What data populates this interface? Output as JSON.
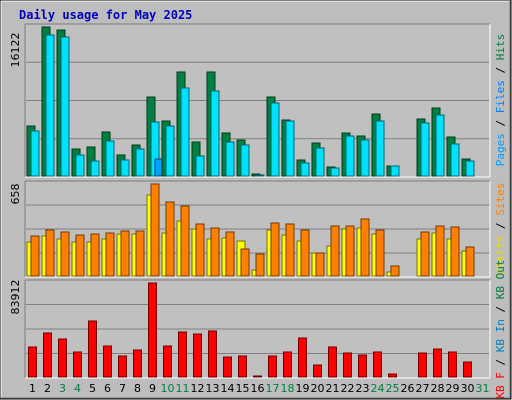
{
  "chart_data": [
    {
      "type": "bar",
      "title": "Daily usage for May 2025",
      "categories": [
        "1",
        "2",
        "3",
        "4",
        "5",
        "6",
        "7",
        "8",
        "9",
        "10",
        "11",
        "12",
        "13",
        "14",
        "15",
        "16",
        "17",
        "18",
        "19",
        "20",
        "21",
        "22",
        "23",
        "24",
        "25",
        "26",
        "27",
        "28",
        "29",
        "30",
        "31"
      ],
      "ymax_label": "16122",
      "ylim": [
        0,
        16122
      ],
      "legend": [
        "Pages",
        "Files",
        "Hits"
      ],
      "series": [
        {
          "name": "Hits",
          "color": "#008040",
          "values": [
            5400,
            16122,
            15800,
            2900,
            3100,
            4800,
            2300,
            3400,
            8600,
            5900,
            11200,
            3700,
            11200,
            4600,
            3900,
            200,
            8500,
            6100,
            1700,
            3600,
            1000,
            4700,
            4300,
            6700,
            1100,
            0,
            6200,
            7400,
            4200,
            1800,
            0
          ]
        },
        {
          "name": "Files",
          "color": "#00e0ff",
          "values": [
            4900,
            15300,
            15000,
            2300,
            1600,
            3800,
            1700,
            2900,
            5800,
            5400,
            9500,
            2200,
            9200,
            3700,
            3400,
            100,
            7900,
            5900,
            1400,
            3000,
            900,
            4300,
            3900,
            6000,
            1100,
            0,
            5700,
            6600,
            3500,
            1600,
            0
          ]
        },
        {
          "name": "Pages",
          "color": "#00a0ff",
          "values": [
            0,
            0,
            0,
            0,
            0,
            0,
            0,
            0,
            1800,
            0,
            0,
            0,
            0,
            0,
            0,
            0,
            0,
            0,
            0,
            0,
            0,
            0,
            0,
            0,
            0,
            0,
            0,
            0,
            0,
            0,
            0
          ]
        }
      ]
    },
    {
      "type": "bar",
      "ymax_label": "658",
      "ylim": [
        0,
        658
      ],
      "legend": [
        "Visits",
        "Sites"
      ],
      "series": [
        {
          "name": "Visits",
          "color": "#ffff00",
          "values": [
            245,
            284,
            262,
            246,
            245,
            268,
            300,
            302,
            580,
            310,
            395,
            335,
            264,
            270,
            252,
            40,
            332,
            290,
            250,
            168,
            218,
            335,
            340,
            298,
            29,
            0,
            265,
            307,
            266,
            180,
            0
          ]
        },
        {
          "name": "Sites",
          "color": "#ff8000",
          "values": [
            285,
            330,
            315,
            295,
            300,
            310,
            325,
            323,
            658,
            530,
            500,
            375,
            340,
            315,
            190,
            155,
            380,
            375,
            330,
            165,
            358,
            360,
            405,
            330,
            70,
            0,
            315,
            360,
            350,
            207,
            0
          ]
        }
      ]
    },
    {
      "type": "bar",
      "ymax_label": "83912",
      "ylim": [
        0,
        83912
      ],
      "legend": [
        "KB F",
        "KB In",
        "KB Out"
      ],
      "series": [
        {
          "name": "KB F",
          "color": "#ff0000",
          "values": [
            27000,
            39000,
            34000,
            22000,
            50000,
            28000,
            19000,
            24000,
            83912,
            28000,
            40000,
            38000,
            41000,
            18000,
            19000,
            900,
            19000,
            22000,
            35000,
            11000,
            27000,
            21000,
            20000,
            22000,
            3000,
            0,
            21000,
            25000,
            22000,
            13000,
            0
          ]
        },
        {
          "name": "KB In",
          "color": "#0080c0",
          "values": []
        },
        {
          "name": "KB Out",
          "color": "#008040",
          "values": []
        }
      ]
    }
  ],
  "highlight_days": [
    "3",
    "4",
    "10",
    "11",
    "17",
    "18",
    "24",
    "25",
    "31"
  ],
  "day_label_colors": {
    "normal": "#000000",
    "highlight": "#008040"
  }
}
